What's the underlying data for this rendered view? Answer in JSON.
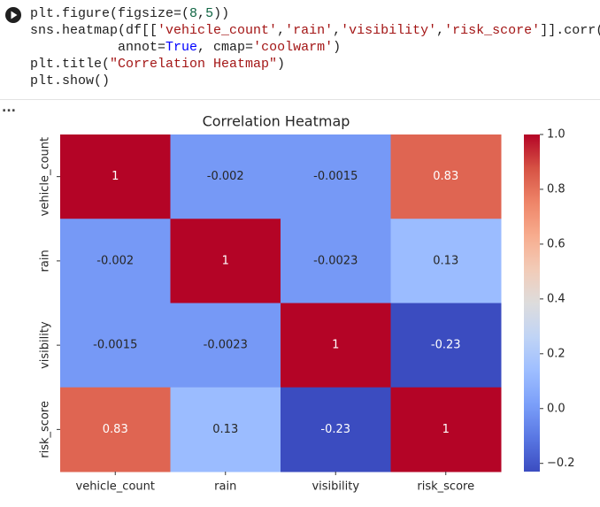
{
  "code": {
    "lines": [
      [
        {
          "text": "plt.figure(figsize=(",
          "color": "#1f1f1f"
        },
        {
          "text": "8",
          "color": "#116644"
        },
        {
          "text": ",",
          "color": "#1f1f1f"
        },
        {
          "text": "5",
          "color": "#116644"
        },
        {
          "text": "))",
          "color": "#1f1f1f"
        }
      ],
      [
        {
          "text": "sns.heatmap(df[[",
          "color": "#1f1f1f"
        },
        {
          "text": "'vehicle_count'",
          "color": "#a31515"
        },
        {
          "text": ",",
          "color": "#1f1f1f"
        },
        {
          "text": "'rain'",
          "color": "#a31515"
        },
        {
          "text": ",",
          "color": "#1f1f1f"
        },
        {
          "text": "'visibility'",
          "color": "#a31515"
        },
        {
          "text": ",",
          "color": "#1f1f1f"
        },
        {
          "text": "'risk_score'",
          "color": "#a31515"
        },
        {
          "text": "]].corr(),",
          "color": "#1f1f1f"
        }
      ],
      [
        {
          "text": "           annot=",
          "color": "#1f1f1f"
        },
        {
          "text": "True",
          "color": "#0000ff"
        },
        {
          "text": ", cmap=",
          "color": "#1f1f1f"
        },
        {
          "text": "'coolwarm'",
          "color": "#a31515"
        },
        {
          "text": ")",
          "color": "#1f1f1f"
        }
      ],
      [
        {
          "text": "plt.title(",
          "color": "#1f1f1f"
        },
        {
          "text": "\"Correlation Heatmap\"",
          "color": "#a31515"
        },
        {
          "text": ")",
          "color": "#1f1f1f"
        }
      ],
      [
        {
          "text": "plt.show()",
          "color": "#1f1f1f"
        }
      ]
    ]
  },
  "output_marker": "...",
  "chart_data": {
    "type": "heatmap",
    "title": "Correlation Heatmap",
    "categories": [
      "vehicle_count",
      "rain",
      "visibility",
      "risk_score"
    ],
    "values": [
      [
        1,
        -0.002,
        -0.0015,
        0.83
      ],
      [
        -0.002,
        1,
        -0.0023,
        0.13
      ],
      [
        -0.0015,
        -0.0023,
        1,
        -0.23
      ],
      [
        0.83,
        0.13,
        -0.23,
        1
      ]
    ],
    "colormap": "coolwarm",
    "clim": [
      -0.23,
      1
    ],
    "cticks": [
      {
        "value": 1,
        "label": "1.0"
      },
      0.8,
      0.6,
      0.4,
      0.2,
      {
        "value": 0,
        "label": "0.0"
      },
      {
        "value": -0.2,
        "label": "−0.2"
      }
    ]
  }
}
